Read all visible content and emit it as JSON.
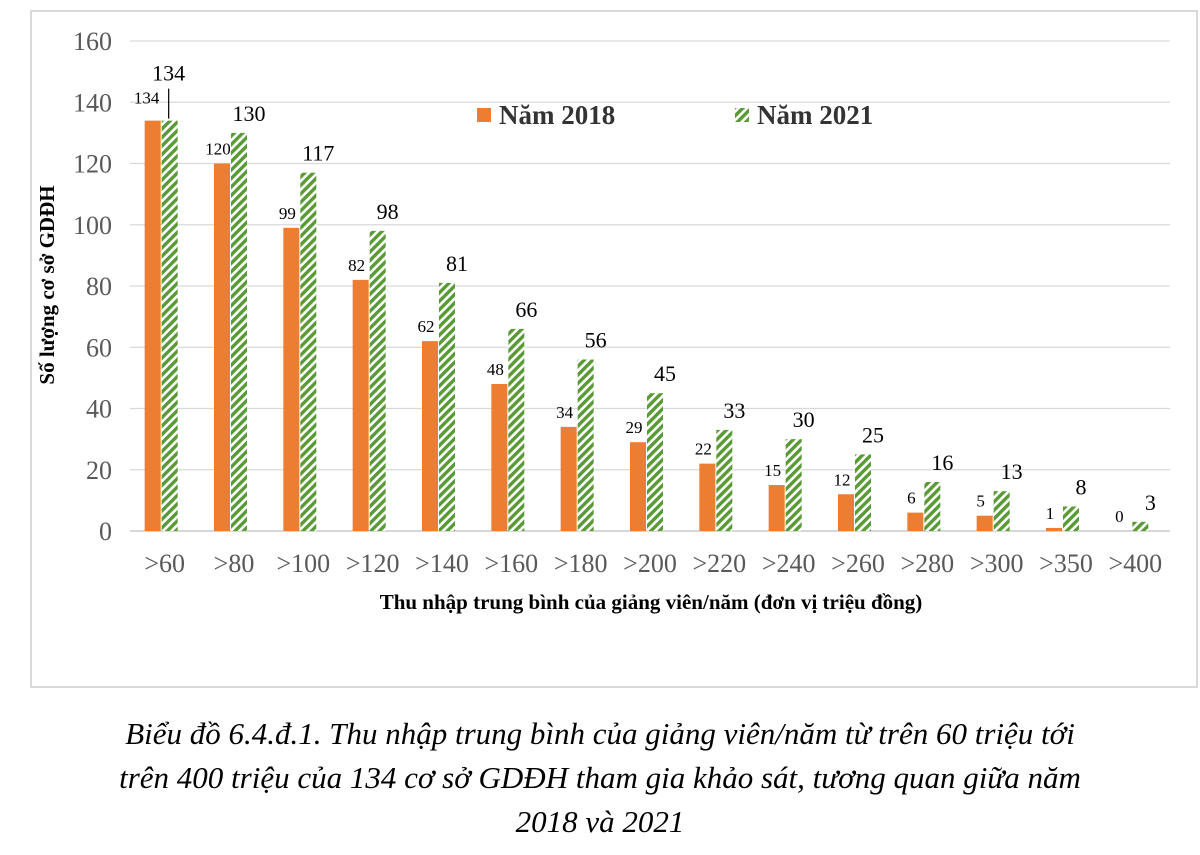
{
  "chart_data": {
    "type": "bar",
    "categories": [
      ">60",
      ">80",
      ">100",
      ">120",
      ">140",
      ">160",
      ">180",
      ">200",
      ">220",
      ">240",
      ">260",
      ">280",
      ">300",
      ">350",
      ">400"
    ],
    "series": [
      {
        "name": "Năm 2018",
        "values": [
          134,
          120,
          99,
          82,
          62,
          48,
          34,
          29,
          22,
          15,
          12,
          6,
          5,
          1,
          0
        ],
        "color": "#ed7d31"
      },
      {
        "name": "Năm 2021",
        "values": [
          134,
          130,
          117,
          98,
          81,
          66,
          56,
          45,
          33,
          30,
          25,
          16,
          13,
          8,
          3
        ],
        "color": "#70ad47",
        "pattern": "diagonal-hatch"
      }
    ],
    "title": "",
    "xlabel": "Thu nhập trung bình của giảng viên/năm (đơn vị triệu đồng)",
    "ylabel": "Số lượng cơ sở GDĐH",
    "ylim": [
      0,
      160
    ],
    "yticks": [
      0,
      20,
      40,
      60,
      80,
      100,
      120,
      140,
      160
    ],
    "grid": true,
    "legend": "top-center"
  },
  "caption": {
    "line1": "Biểu đồ 6.4.đ.1. Thu nhập trung bình của giảng viên/năm từ trên 60 triệu tới",
    "line2": "trên 400 triệu của 134 cơ sở GDĐH tham gia khảo sát, tương quan giữa năm",
    "line3": "2018 và 2021"
  }
}
